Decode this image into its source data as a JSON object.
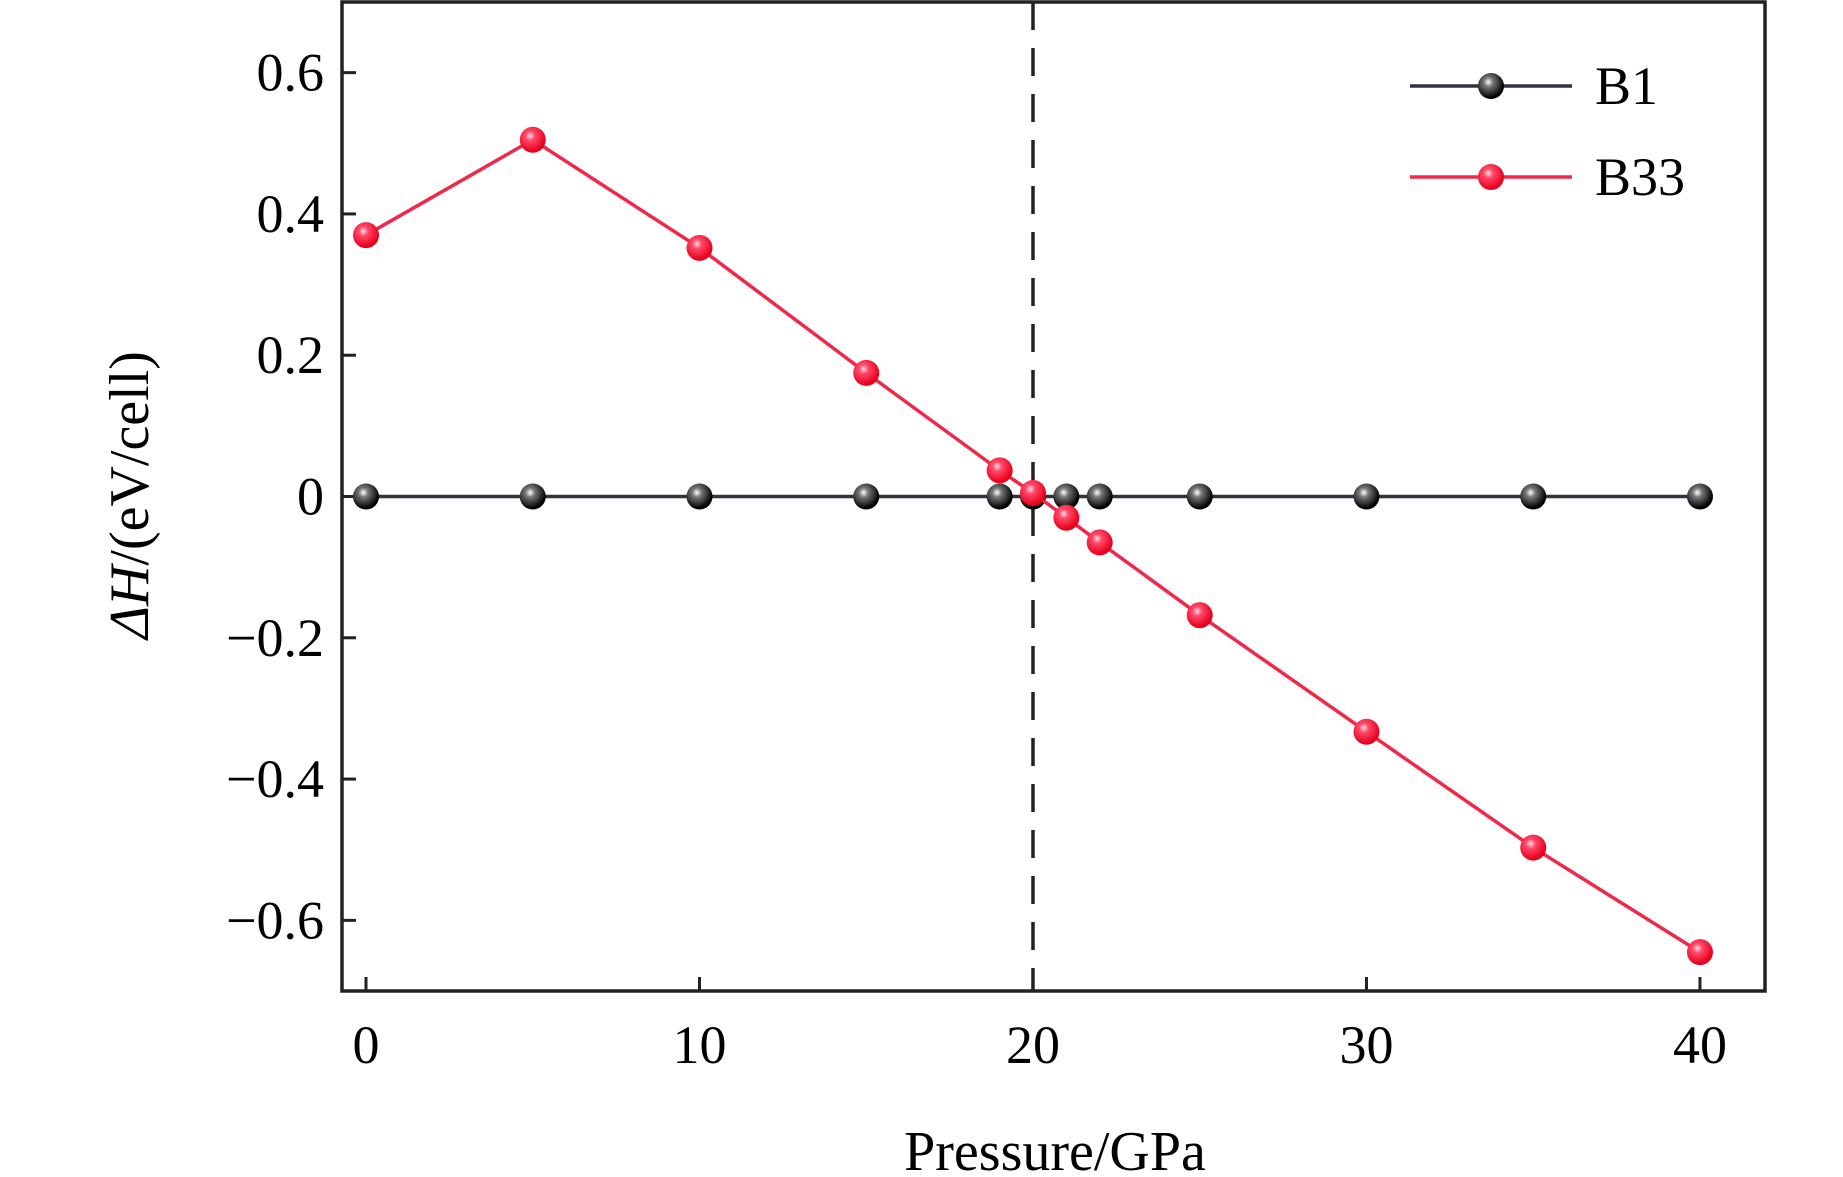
{
  "chart_data": {
    "type": "line",
    "title": "",
    "xlabel": "Pressure/GPa",
    "ylabel_prefix": "ΔH",
    "ylabel_suffix": "/(eV/cell)",
    "xlim": [
      -0.72,
      41.95
    ],
    "ylim": [
      -0.7,
      0.7
    ],
    "xticks": [
      0,
      10,
      20,
      30,
      40
    ],
    "xtick_labels": [
      "0",
      "10",
      "20",
      "30",
      "40"
    ],
    "yticks": [
      0.6,
      0.4,
      0.2,
      0,
      -0.2,
      -0.4,
      -0.6
    ],
    "ytick_labels": [
      "0.6",
      "0.4",
      "0.2",
      "0",
      "−0.2",
      "−0.4",
      "−0.6"
    ],
    "vline": {
      "x": 20,
      "style": "dashed",
      "color": "#222222"
    },
    "legend_position": "top-right",
    "series": [
      {
        "name": "B1",
        "color": "#333340",
        "marker": "#111111",
        "x": [
          0,
          5,
          10,
          15,
          19,
          20,
          21,
          22,
          25,
          30,
          35,
          40
        ],
        "y": [
          0,
          0,
          0,
          0,
          0,
          0,
          0,
          0,
          0,
          0,
          0,
          0
        ]
      },
      {
        "name": "B33",
        "color": "#f0284a",
        "marker": "#f41a32",
        "x": [
          0,
          5,
          10,
          15,
          19,
          20,
          21,
          22,
          25,
          30,
          35,
          40
        ],
        "y": [
          0.37,
          0.505,
          0.352,
          0.175,
          0.037,
          0.005,
          -0.03,
          -0.065,
          -0.168,
          -0.333,
          -0.497,
          -0.645
        ]
      }
    ]
  }
}
